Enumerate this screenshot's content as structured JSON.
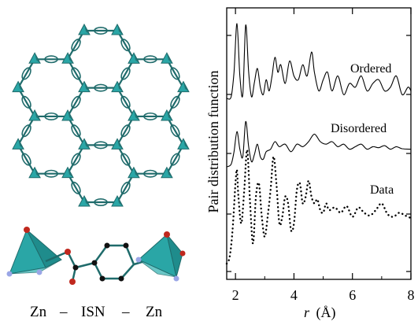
{
  "structure_caption": {
    "left": "Zn",
    "dash1": "–",
    "middle": "ISN",
    "dash2": "–",
    "right": "Zn"
  },
  "colors": {
    "framework": "#1f6b6b",
    "tetrahedron_face": "#2aa6a6",
    "oxygen_atom": "#c0281e",
    "nitrogen_atom": "#9aa6e6",
    "carbon_atom": "#111111"
  },
  "chart_data": {
    "type": "line",
    "xlabel_var": "r",
    "xlabel_unit": "(Å)",
    "ylabel": "Pair distribution function",
    "xlim": [
      1.7,
      8
    ],
    "x_ticks": [
      "2",
      "4",
      "6",
      "8"
    ],
    "y_ticks_labeled": false,
    "grid": false,
    "legend": "inline labels at right of each curve",
    "series": [
      {
        "name": "Ordered",
        "style": "solid-thin",
        "x": [
          1.7,
          1.85,
          1.95,
          2.05,
          2.15,
          2.25,
          2.35,
          2.45,
          2.55,
          2.65,
          2.75,
          2.85,
          2.95,
          3.05,
          3.15,
          3.25,
          3.35,
          3.45,
          3.55,
          3.7,
          3.85,
          4.0,
          4.15,
          4.3,
          4.45,
          4.6,
          4.7,
          4.85,
          5.0,
          5.15,
          5.3,
          5.5,
          5.7,
          5.9,
          6.1,
          6.3,
          6.5,
          6.7,
          6.9,
          7.1,
          7.3,
          7.5,
          7.7,
          7.9,
          8.0
        ],
        "y": [
          0.0,
          0.02,
          0.35,
          1.0,
          0.3,
          0.05,
          0.98,
          0.35,
          0.02,
          0.22,
          0.4,
          0.15,
          0.05,
          0.25,
          0.1,
          0.3,
          0.55,
          0.35,
          0.45,
          0.2,
          0.5,
          0.3,
          0.25,
          0.45,
          0.3,
          0.62,
          0.35,
          0.1,
          0.25,
          0.35,
          0.1,
          0.3,
          0.05,
          0.2,
          0.15,
          0.3,
          0.1,
          0.2,
          0.25,
          0.1,
          0.15,
          0.3,
          0.05,
          0.15,
          0.1
        ]
      },
      {
        "name": "Disordered",
        "style": "solid-thin",
        "x": [
          1.7,
          1.85,
          1.95,
          2.05,
          2.15,
          2.25,
          2.35,
          2.45,
          2.55,
          2.65,
          2.75,
          2.85,
          2.95,
          3.05,
          3.2,
          3.35,
          3.5,
          3.7,
          3.9,
          4.1,
          4.3,
          4.5,
          4.7,
          4.9,
          5.1,
          5.3,
          5.5,
          5.7,
          5.9,
          6.1,
          6.3,
          6.5,
          6.7,
          6.9,
          7.1,
          7.3,
          7.5,
          7.7,
          8.0
        ],
        "y": [
          0.0,
          0.05,
          0.3,
          0.7,
          0.35,
          0.2,
          0.9,
          0.4,
          0.1,
          0.25,
          0.45,
          0.2,
          0.15,
          0.3,
          0.35,
          0.5,
          0.4,
          0.45,
          0.3,
          0.45,
          0.4,
          0.5,
          0.65,
          0.5,
          0.45,
          0.5,
          0.4,
          0.45,
          0.35,
          0.4,
          0.45,
          0.35,
          0.4,
          0.38,
          0.42,
          0.35,
          0.4,
          0.36,
          0.35
        ]
      },
      {
        "name": "Data",
        "style": "dotted-thick",
        "x": [
          1.7,
          1.8,
          1.9,
          2.0,
          2.05,
          2.1,
          2.2,
          2.3,
          2.4,
          2.5,
          2.6,
          2.7,
          2.8,
          2.9,
          3.0,
          3.1,
          3.2,
          3.3,
          3.4,
          3.5,
          3.6,
          3.7,
          3.8,
          3.9,
          4.0,
          4.1,
          4.2,
          4.3,
          4.4,
          4.5,
          4.6,
          4.7,
          4.8,
          4.9,
          5.0,
          5.1,
          5.2,
          5.4,
          5.6,
          5.8,
          6.0,
          6.2,
          6.4,
          6.6,
          6.8,
          7.0,
          7.2,
          7.4,
          7.6,
          7.8,
          8.0
        ],
        "y": [
          0.0,
          0.05,
          0.25,
          0.6,
          0.7,
          0.5,
          0.3,
          0.55,
          0.85,
          0.45,
          0.15,
          0.5,
          0.6,
          0.35,
          0.2,
          0.35,
          0.55,
          0.8,
          0.6,
          0.3,
          0.35,
          0.5,
          0.45,
          0.25,
          0.3,
          0.55,
          0.6,
          0.45,
          0.5,
          0.62,
          0.5,
          0.45,
          0.48,
          0.4,
          0.38,
          0.45,
          0.4,
          0.42,
          0.38,
          0.43,
          0.35,
          0.42,
          0.38,
          0.36,
          0.4,
          0.45,
          0.37,
          0.35,
          0.38,
          0.36,
          0.34
        ]
      }
    ]
  }
}
